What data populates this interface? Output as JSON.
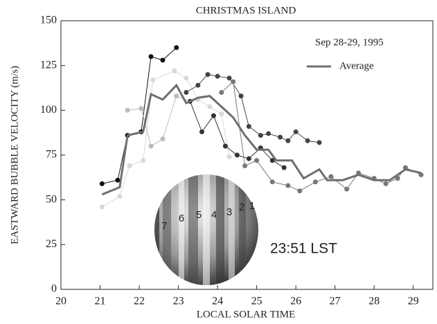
{
  "chart_data": {
    "type": "line",
    "title": "CHRISTMAS ISLAND",
    "x_label": "LOCAL SOLAR TIME",
    "y_label": "EASTWARD BUBBLE VELOCITY (m/s)",
    "xlim": [
      20,
      29.5
    ],
    "ylim": [
      0,
      150
    ],
    "xticks": [
      20,
      21,
      22,
      23,
      24,
      25,
      26,
      27,
      28,
      29
    ],
    "yticks": [
      0,
      25,
      50,
      75,
      100,
      125,
      150
    ],
    "legend_title": "Sep 28-29, 1995",
    "legend_position": "upper right",
    "annotation": "23:51 LST",
    "inset_labels": [
      "7",
      "6",
      "5",
      "4",
      "3",
      "2",
      "1"
    ],
    "series": [
      {
        "color": "#111",
        "x": [
          21.05,
          21.45,
          21.7,
          22.05,
          22.3,
          22.6,
          22.95
        ],
        "values": [
          59,
          61,
          86,
          88,
          130,
          128,
          135
        ]
      },
      {
        "color": "#d8d8d8",
        "x": [
          21.05,
          21.5,
          21.75,
          22.1,
          22.35,
          22.9,
          23.2,
          23.5,
          23.8,
          24.1,
          24.3
        ],
        "values": [
          46,
          52,
          69,
          72,
          117,
          122,
          118,
          106,
          102,
          98,
          74
        ]
      },
      {
        "color": "#bbb",
        "x": [
          21.7,
          22.05,
          22.3,
          22.6,
          22.95,
          23.3
        ],
        "values": [
          100,
          101,
          80,
          84,
          108,
          105
        ]
      },
      {
        "color": "#444",
        "x": [
          23.2,
          23.5,
          23.75,
          24.0,
          24.3,
          24.6,
          24.8,
          25.1,
          25.3,
          25.6,
          25.8,
          26.0,
          26.3,
          26.6
        ],
        "values": [
          110,
          114,
          120,
          119,
          118,
          108,
          91,
          86,
          87,
          85,
          83,
          88,
          83,
          82
        ]
      },
      {
        "color": "#333",
        "x": [
          23.3,
          23.6,
          23.9,
          24.2,
          24.5,
          24.8,
          25.1,
          25.4,
          25.7
        ],
        "values": [
          105,
          88,
          97,
          80,
          75,
          73,
          79,
          72,
          68
        ]
      },
      {
        "color": "#777",
        "x": [
          24.1,
          24.4,
          24.7,
          25.0,
          25.4,
          25.8,
          26.1,
          26.5,
          26.9,
          27.3,
          27.6,
          28.0,
          28.3,
          28.6,
          28.8,
          29.2
        ],
        "values": [
          110,
          116,
          69,
          72,
          60,
          58,
          55,
          60,
          63,
          56,
          65,
          62,
          59,
          62,
          68,
          64
        ]
      },
      {
        "name": "Average",
        "color": "#6e6e6e",
        "width": 3,
        "markers": false,
        "x": [
          21.05,
          21.5,
          21.7,
          22.1,
          22.3,
          22.6,
          22.95,
          23.2,
          23.5,
          23.8,
          24.1,
          24.4,
          24.7,
          25.0,
          25.3,
          25.5,
          25.9,
          26.2,
          26.6,
          26.8,
          27.2,
          27.6,
          28.0,
          28.4,
          28.8,
          29.2
        ],
        "values": [
          53,
          57,
          86,
          88,
          109,
          106,
          114,
          104,
          107,
          108,
          102,
          96,
          86,
          78,
          78,
          72,
          72,
          62,
          67,
          61,
          61,
          64,
          61,
          61,
          67,
          65
        ]
      }
    ]
  }
}
